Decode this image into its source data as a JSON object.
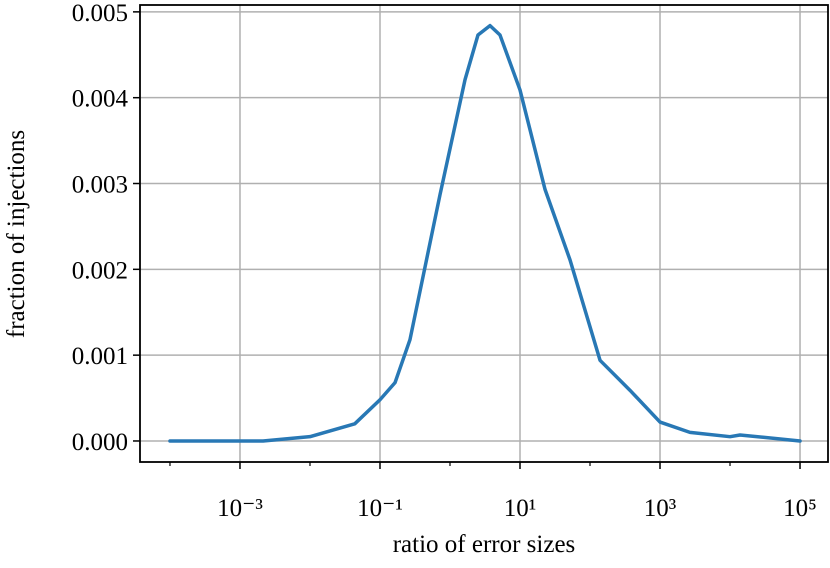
{
  "chart_data": {
    "type": "line",
    "x_label": "ratio of error sizes",
    "y_label": "fraction of injections",
    "xscale": "log",
    "grid": true,
    "xlim": [
      3.73e-05,
      251000
    ],
    "ylim": [
      -0.000245,
      0.00508
    ],
    "xticks": [
      {
        "value": 0.001,
        "label": "10⁻³"
      },
      {
        "value": 0.1,
        "label": "10⁻¹"
      },
      {
        "value": 10,
        "label": "10¹"
      },
      {
        "value": 1000,
        "label": "10³"
      },
      {
        "value": 100000,
        "label": "10⁵"
      }
    ],
    "xminorticks": [
      0.0001,
      0.01,
      1,
      100,
      10000
    ],
    "yticks": [
      {
        "value": 0,
        "label": "0.000"
      },
      {
        "value": 0.001,
        "label": "0.001"
      },
      {
        "value": 0.002,
        "label": "0.002"
      },
      {
        "value": 0.003,
        "label": "0.003"
      },
      {
        "value": 0.004,
        "label": "0.004"
      },
      {
        "value": 0.005,
        "label": "0.005"
      }
    ],
    "series": [
      {
        "color": "#2878b5",
        "x": [
          0.0001,
          0.00214,
          0.01,
          0.0436,
          0.1,
          0.164,
          0.268,
          0.72,
          1.64,
          2.51,
          3.73,
          5.18,
          10,
          22.8,
          51.8,
          139,
          373,
          1000,
          2680,
          10000,
          13900,
          100000
        ],
        "values": [
          0,
          0,
          5e-05,
          0.0002,
          0.00048,
          0.00068,
          0.00118,
          0.00287,
          0.00421,
          0.00473,
          0.00484,
          0.00473,
          0.00409,
          0.00293,
          0.00211,
          0.00094,
          0.00059,
          0.00022,
          0.0001,
          5e-05,
          7e-05,
          0
        ]
      }
    ]
  }
}
